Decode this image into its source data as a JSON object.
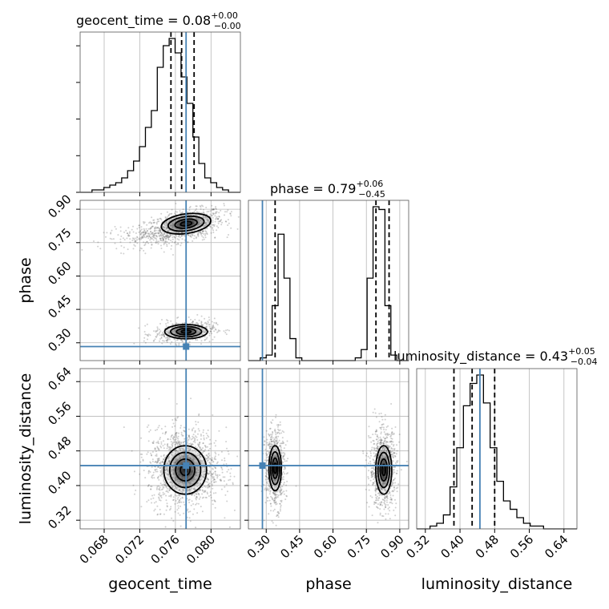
{
  "chart_data": {
    "type": "corner",
    "parameters": [
      "geocent_time",
      "phase",
      "luminosity_distance"
    ],
    "titles": [
      {
        "param": "geocent_time",
        "label": "geocent_time = 0.08",
        "sup": "+0.00",
        "sub": "−0.00"
      },
      {
        "param": "phase",
        "label": "phase = 0.79",
        "sup": "+0.06",
        "sub": "−0.45"
      },
      {
        "param": "luminosity_distance",
        "label": "luminosity_distance = 0.43",
        "sup": "+0.05",
        "sub": "−0.04"
      }
    ],
    "axes": {
      "geocent_time": {
        "range": [
          0.0653,
          0.0833
        ],
        "ticks": [
          0.068,
          0.072,
          0.076,
          0.08
        ],
        "tick_labels": [
          "0.068",
          "0.072",
          "0.076",
          "0.080"
        ]
      },
      "phase": {
        "range": [
          0.22,
          0.94
        ],
        "ticks": [
          0.3,
          0.45,
          0.6,
          0.75,
          0.9
        ],
        "tick_labels": [
          "0.30",
          "0.45",
          "0.60",
          "0.75",
          "0.90"
        ]
      },
      "luminosity_distance": {
        "range": [
          0.3,
          0.67
        ],
        "ticks": [
          0.32,
          0.4,
          0.48,
          0.56,
          0.64
        ],
        "tick_labels": [
          "0.32",
          "0.40",
          "0.48",
          "0.56",
          "0.64"
        ]
      }
    },
    "truths": {
      "geocent_time": 0.0772,
      "phase": 0.283,
      "luminosity_distance": 0.446
    },
    "quantiles": {
      "geocent_time": [
        0.0755,
        0.0767,
        0.0781
      ],
      "phase": [
        0.34,
        0.793,
        0.852
      ],
      "luminosity_distance": [
        0.386,
        0.428,
        0.48
      ]
    },
    "histograms": {
      "geocent_time": {
        "edges_range": [
          0.0653,
          0.0833
        ],
        "counts": [
          0,
          0,
          1,
          1,
          2,
          3,
          4,
          6,
          9,
          13,
          19,
          27,
          34,
          52,
          61,
          64,
          58,
          48,
          37,
          23,
          12,
          6,
          4,
          2,
          1,
          0,
          0
        ]
      },
      "phase": {
        "edges_range": [
          0.22,
          0.94
        ],
        "counts": [
          0,
          0,
          1,
          2,
          20,
          46,
          30,
          8,
          1,
          0,
          0,
          0,
          0,
          0,
          0,
          0,
          0,
          0,
          1,
          4,
          30,
          56,
          55,
          20,
          2,
          0,
          0
        ]
      },
      "luminosity_distance": {
        "edges_range": [
          0.3,
          0.67
        ],
        "counts": [
          0,
          0,
          1,
          2,
          5,
          15,
          29,
          44,
          52,
          55,
          45,
          29,
          17,
          10,
          7,
          4,
          2,
          1,
          1,
          0,
          0,
          0,
          0,
          0
        ]
      }
    },
    "grid": true
  }
}
